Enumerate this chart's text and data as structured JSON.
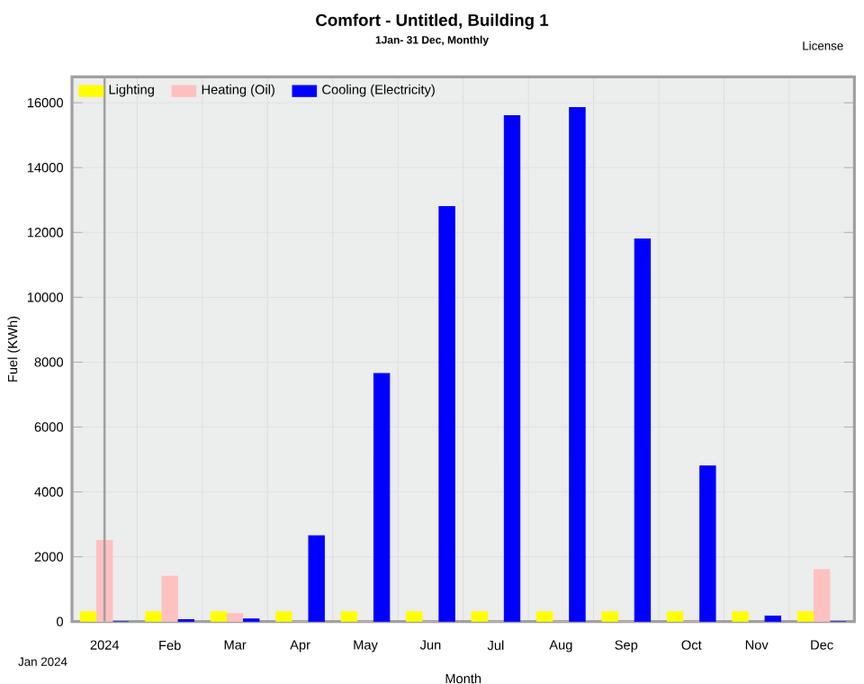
{
  "chart_data": {
    "type": "bar",
    "title": "Comfort - Untitled, Building 1",
    "subtitle": "1Jan- 31 Dec, Monthly",
    "xlabel": "Month",
    "ylabel": "Fuel (KWh)",
    "categories": [
      "2024",
      "Feb",
      "Mar",
      "Apr",
      "May",
      "Jun",
      "Jul",
      "Aug",
      "Sep",
      "Oct",
      "Nov",
      "Dec"
    ],
    "series": [
      {
        "name": "Lighting",
        "color": "#ffff00",
        "values": [
          300,
          300,
          300,
          300,
          300,
          300,
          300,
          300,
          300,
          300,
          300,
          300
        ]
      },
      {
        "name": "Heating (Oil)",
        "color": "#ffc0c0",
        "values": [
          2500,
          1400,
          250,
          0,
          0,
          0,
          0,
          0,
          0,
          0,
          null,
          1600
        ]
      },
      {
        "name": "Cooling (Electricity)",
        "color": "#0000ff",
        "values": [
          0,
          60,
          80,
          2650,
          7650,
          12800,
          15600,
          15850,
          11800,
          4800,
          170,
          0
        ]
      }
    ],
    "ylim": [
      0,
      16800
    ],
    "yticks": [
      0,
      2000,
      4000,
      6000,
      8000,
      10000,
      12000,
      14000,
      16000
    ],
    "grid": true,
    "legend": "top left",
    "ref_lines": [
      {
        "axis": "x",
        "value": "2024",
        "color": "#a0a0a0"
      }
    ],
    "annotations": [
      "License",
      "Jan 2024"
    ]
  }
}
